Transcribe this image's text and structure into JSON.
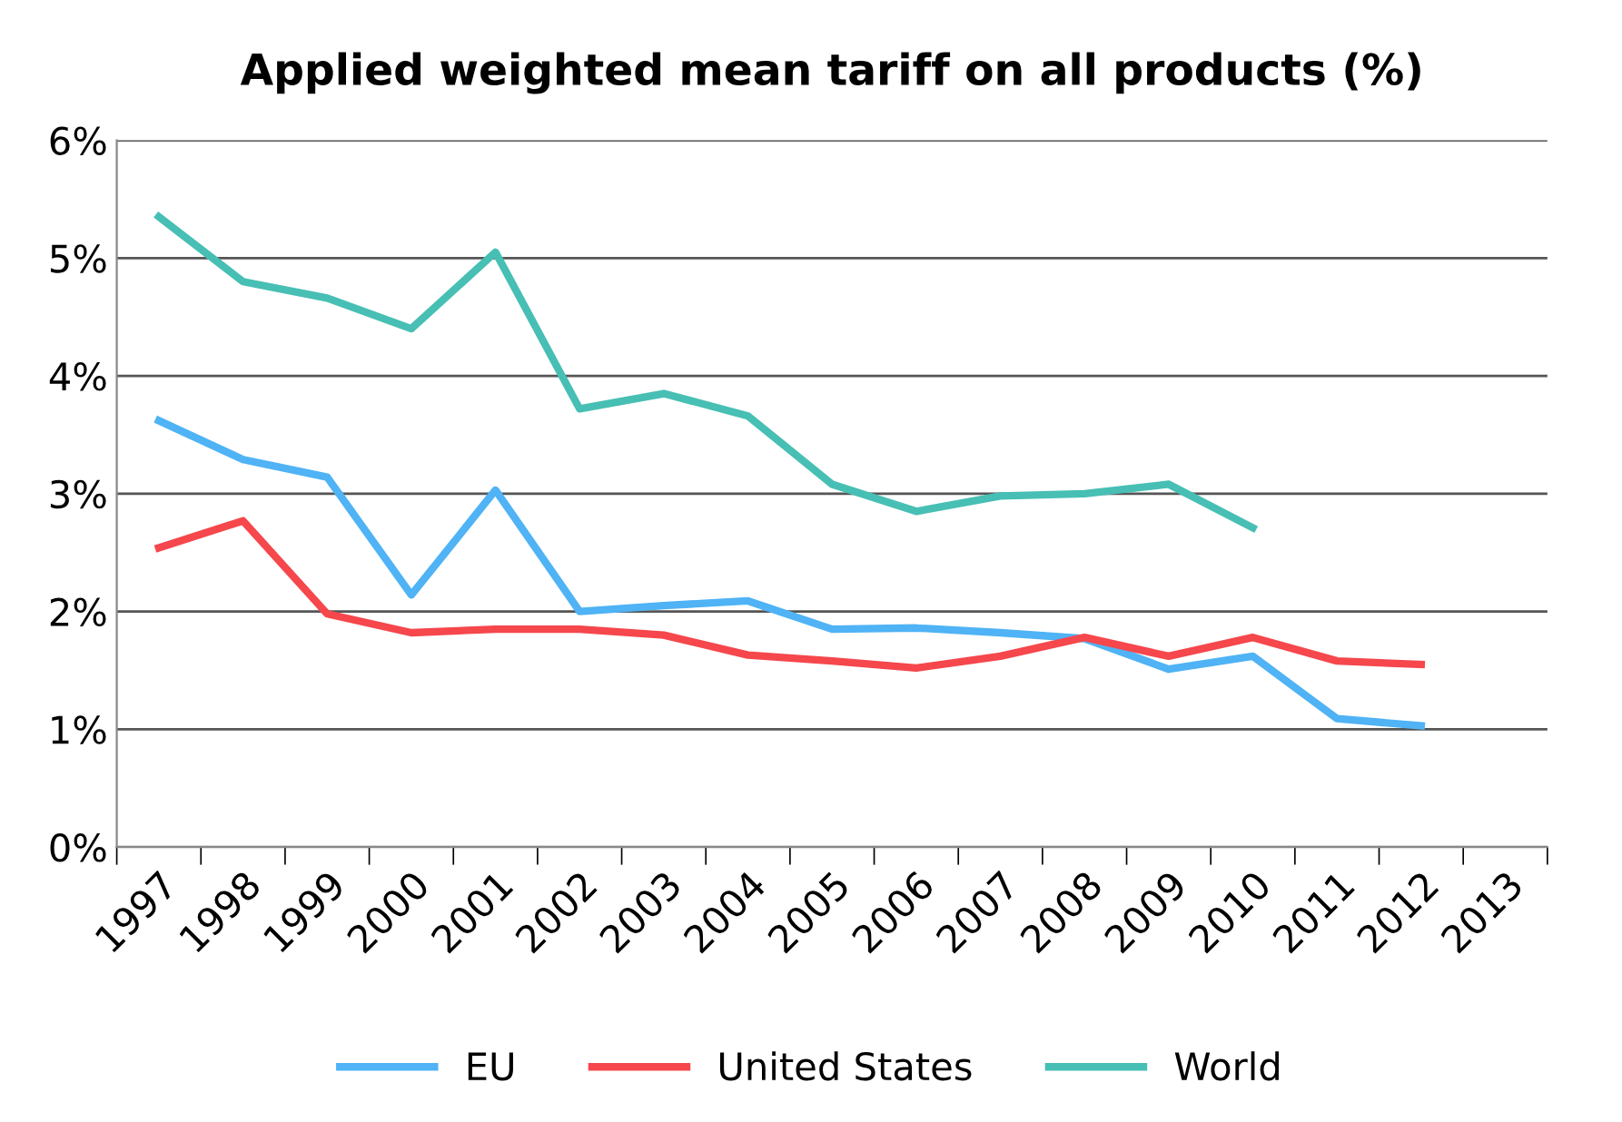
{
  "chart_data": {
    "type": "line",
    "title": "Applied weighted mean tariff on all products (%)",
    "categories": [
      "1997",
      "1998",
      "1999",
      "2000",
      "2001",
      "2002",
      "2003",
      "2004",
      "2005",
      "2006",
      "2007",
      "2008",
      "2009",
      "2010",
      "2011",
      "2012",
      "2013"
    ],
    "series": [
      {
        "name": "EU",
        "color": "#4fb3f5",
        "values": [
          3.62,
          3.29,
          3.14,
          2.14,
          3.03,
          2.0,
          2.05,
          2.09,
          1.85,
          1.86,
          1.82,
          1.77,
          1.51,
          1.62,
          1.09,
          1.03,
          null
        ]
      },
      {
        "name": "United States",
        "color": "#f5474c",
        "values": [
          2.54,
          2.77,
          1.98,
          1.82,
          1.85,
          1.85,
          1.8,
          1.63,
          1.58,
          1.52,
          1.62,
          1.78,
          1.62,
          1.78,
          1.58,
          1.55,
          null
        ]
      },
      {
        "name": "World",
        "color": "#47bfb4",
        "values": [
          5.35,
          4.8,
          4.66,
          4.4,
          5.05,
          3.72,
          3.85,
          3.66,
          3.08,
          2.85,
          2.98,
          3.0,
          3.08,
          2.71,
          null,
          null,
          null
        ]
      }
    ],
    "ylim": [
      0,
      6
    ],
    "yticks": [
      {
        "value": 0,
        "label": "0%"
      },
      {
        "value": 1,
        "label": "1%"
      },
      {
        "value": 2,
        "label": "2%"
      },
      {
        "value": 3,
        "label": "3%"
      },
      {
        "value": 4,
        "label": "4%"
      },
      {
        "value": 5,
        "label": "5%"
      },
      {
        "value": 6,
        "label": "6%"
      }
    ],
    "grid": "y",
    "legend": "bottom",
    "marker": "none",
    "line_style": "solid"
  }
}
